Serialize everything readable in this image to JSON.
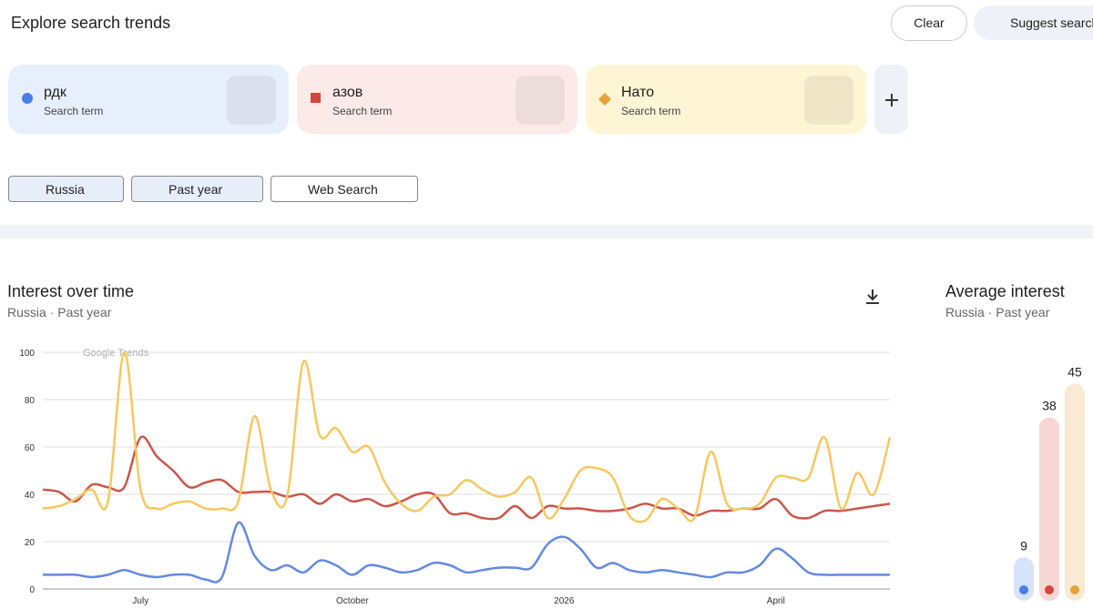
{
  "header": {
    "title": "Explore search trends",
    "clear": "Clear",
    "suggest": "Suggest searches"
  },
  "terms": [
    {
      "name": "рдк",
      "subtitle": "Search term"
    },
    {
      "name": "азов",
      "subtitle": "Search term"
    },
    {
      "name": "Нато",
      "subtitle": "Search term"
    }
  ],
  "filters": [
    "Russia",
    "Past year",
    "Web Search"
  ],
  "chart_data": [
    {
      "type": "line",
      "title": "Interest over time",
      "subtitle": "Russia · Past year",
      "watermark": "Google Trends",
      "categories": [
        null,
        null,
        null,
        null,
        null,
        null,
        "July",
        null,
        null,
        null,
        null,
        null,
        null,
        null,
        null,
        null,
        null,
        null,
        null,
        "October",
        null,
        null,
        null,
        null,
        null,
        null,
        null,
        null,
        null,
        null,
        null,
        null,
        "2026",
        null,
        null,
        null,
        null,
        null,
        null,
        null,
        null,
        null,
        null,
        null,
        null,
        "April",
        null,
        null,
        null,
        null,
        null,
        null,
        null
      ],
      "ylim": [
        0,
        100
      ],
      "yticks": [
        0,
        20,
        40,
        60,
        80,
        100
      ],
      "grid": true,
      "series": [
        {
          "name": "рдк",
          "color": "#6489e0",
          "values": [
            6,
            6,
            6,
            5,
            6,
            8,
            6,
            5,
            6,
            6,
            4,
            5,
            28,
            14,
            8,
            10,
            7,
            12,
            10,
            6,
            10,
            9,
            7,
            8,
            11,
            10,
            7,
            8,
            9,
            9,
            9,
            19,
            22,
            17,
            9,
            11,
            8,
            7,
            8,
            7,
            6,
            5,
            7,
            7,
            10,
            17,
            13,
            7,
            6,
            6,
            6,
            6,
            6
          ]
        },
        {
          "name": "азов",
          "color": "#c9574b",
          "values": [
            42,
            41,
            37,
            44,
            43,
            43,
            64,
            56,
            50,
            43,
            45,
            46,
            41,
            41,
            41,
            39,
            40,
            36,
            40,
            37,
            38,
            35,
            37,
            40,
            40,
            32,
            32,
            30,
            30,
            35,
            30,
            35,
            34,
            34,
            33,
            33,
            34,
            36,
            34,
            34,
            31,
            33,
            33,
            34,
            34,
            38,
            31,
            30,
            33,
            33,
            34,
            35,
            36
          ]
        },
        {
          "name": "Нато",
          "color": "#f5c862",
          "values": [
            34,
            35,
            38,
            42,
            37,
            100,
            42,
            34,
            36,
            37,
            34,
            34,
            37,
            73,
            42,
            39,
            96,
            65,
            68,
            58,
            60,
            45,
            36,
            33,
            39,
            40,
            46,
            42,
            39,
            41,
            47,
            30,
            38,
            50,
            51,
            47,
            31,
            29,
            38,
            34,
            30,
            58,
            36,
            34,
            36,
            47,
            47,
            47,
            64,
            34,
            49,
            40,
            64
          ]
        }
      ]
    },
    {
      "type": "bar",
      "title": "Average interest",
      "subtitle": "Russia · Past year",
      "values": [
        9,
        38,
        45
      ],
      "colors": [
        "#4a7ee8",
        "#d4473a",
        "#e9a13b"
      ]
    }
  ]
}
